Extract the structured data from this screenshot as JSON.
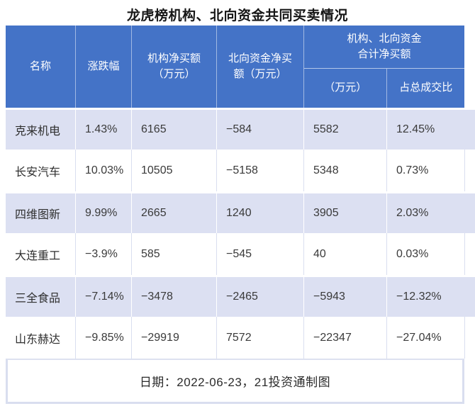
{
  "title": "龙虎榜机构、北向资金共同买卖情况",
  "header": {
    "name": "名称",
    "change": "涨跌幅",
    "inst": "机构净买额\n（万元）",
    "north": "北向资金净买\n额（万元）",
    "group": "机构、北向资金\n合计净买额",
    "amount": "（万元）",
    "ratio": "占总成交比"
  },
  "chart_data": {
    "type": "table",
    "title": "龙虎榜机构、北向资金共同买卖情况",
    "columns": [
      "名称",
      "涨跌幅",
      "机构净买额（万元）",
      "北向资金净买额（万元）",
      "机构、北向资金合计净买额（万元）",
      "机构、北向资金合计净买额占总成交比"
    ],
    "rows": [
      {
        "name": "克来机电",
        "change_pct": "1.43%",
        "inst_net": "6165",
        "north_net": "−584",
        "combined_net": "5582",
        "pct_of_turnover": "12.45%"
      },
      {
        "name": "长安汽车",
        "change_pct": "10.03%",
        "inst_net": "10505",
        "north_net": "−5158",
        "combined_net": "5348",
        "pct_of_turnover": "0.73%"
      },
      {
        "name": "四维图新",
        "change_pct": "9.99%",
        "inst_net": "2665",
        "north_net": "1240",
        "combined_net": "3905",
        "pct_of_turnover": "2.03%"
      },
      {
        "name": "大连重工",
        "change_pct": "−3.9%",
        "inst_net": "585",
        "north_net": "−545",
        "combined_net": "40",
        "pct_of_turnover": "0.03%"
      },
      {
        "name": "三全食品",
        "change_pct": "−7.14%",
        "inst_net": "−3478",
        "north_net": "−2465",
        "combined_net": "−5943",
        "pct_of_turnover": "−12.32%"
      },
      {
        "name": "山东赫达",
        "change_pct": "−9.85%",
        "inst_net": "−29919",
        "north_net": "7572",
        "combined_net": "−22347",
        "pct_of_turnover": "−27.04%"
      }
    ]
  },
  "footer": {
    "note": "日期：2022-06-23，21投资通制图"
  },
  "colors": {
    "header_bg": "#4473C7",
    "stripe_bg": "#DCE0F2",
    "divider": "#D9DEEF",
    "header_text": "#FFFFFF",
    "body_text": "#3A3A3A"
  }
}
